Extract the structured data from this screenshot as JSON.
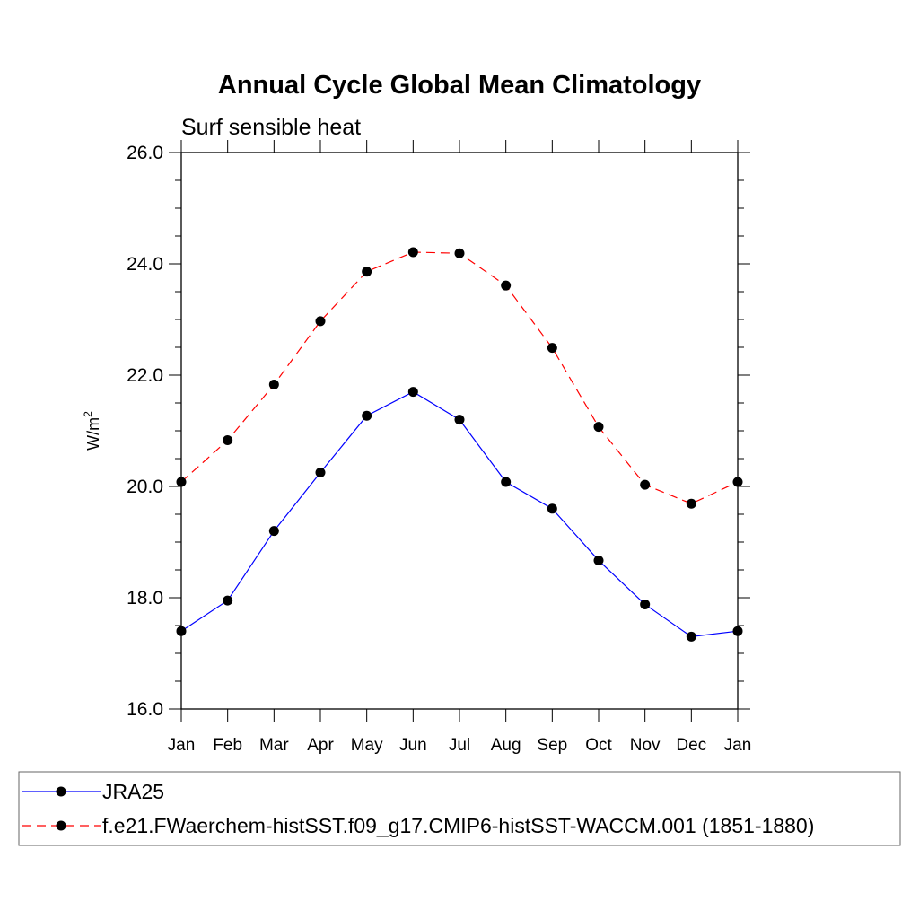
{
  "chart_data": {
    "type": "line",
    "title": "Annual Cycle Global Mean Climatology",
    "subtitle": "Surf sensible heat",
    "ylabel_base": "W/m",
    "ylabel_sup": "2",
    "xlabel": "",
    "categories": [
      "Jan",
      "Feb",
      "Mar",
      "Apr",
      "May",
      "Jun",
      "Jul",
      "Aug",
      "Sep",
      "Oct",
      "Nov",
      "Dec",
      "Jan"
    ],
    "ylim": [
      16.0,
      26.0
    ],
    "y_ticks": [
      "16.0",
      "18.0",
      "20.0",
      "22.0",
      "24.0",
      "26.0"
    ],
    "y_tick_values": [
      16,
      18,
      20,
      22,
      24,
      26
    ],
    "grid": false,
    "legend_position": "bottom",
    "series": [
      {
        "name": "JRA25",
        "color": "#0000ff",
        "dash": "solid",
        "values": [
          17.4,
          17.95,
          19.2,
          20.25,
          21.27,
          21.7,
          21.2,
          20.08,
          19.6,
          18.67,
          17.88,
          17.3,
          17.4
        ]
      },
      {
        "name": "f.e21.FWaerchem-histSST.f09_g17.CMIP6-histSST-WACCM.001 (1851-1880)",
        "color": "#ff0000",
        "dash": "dashed",
        "values": [
          20.08,
          20.83,
          21.83,
          22.97,
          23.86,
          24.21,
          24.19,
          23.61,
          22.49,
          21.07,
          20.03,
          19.69,
          20.08
        ]
      }
    ]
  }
}
